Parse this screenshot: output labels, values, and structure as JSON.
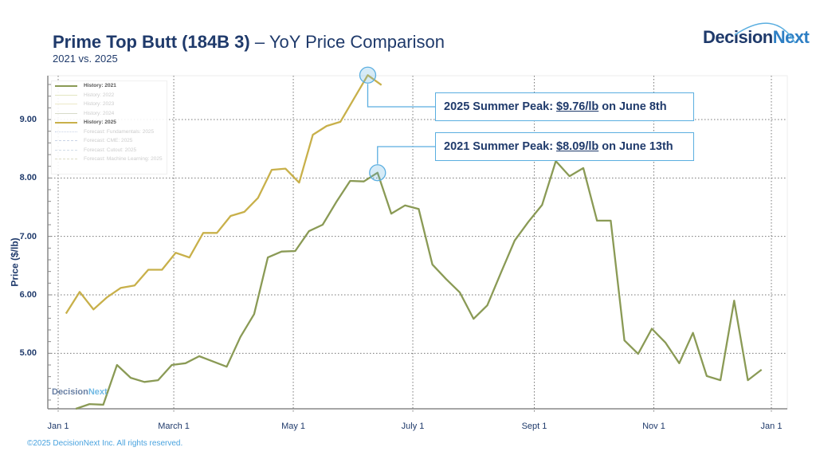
{
  "header": {
    "title_bold": "Prime Top Butt (184B 3)",
    "title_rest": " – YoY Price Comparison",
    "subtitle": "2021 vs. 2025",
    "logo_text_a": "Decision",
    "logo_text_b": "Next"
  },
  "footer": {
    "copyright": "©2025 DecisionNext Inc. All rights reserved."
  },
  "watermark": {
    "a": "Decision",
    "b": "Next"
  },
  "legend": {
    "items": [
      {
        "label": "History: 2021",
        "active": true,
        "color": "#8a9a55",
        "style": "solid"
      },
      {
        "label": "History: 2022",
        "active": false,
        "color": "#e3e6c2",
        "style": "solid"
      },
      {
        "label": "History: 2023",
        "active": false,
        "color": "#ece8c8",
        "style": "solid"
      },
      {
        "label": "History: 2024",
        "active": false,
        "color": "#d7dbc9",
        "style": "solid"
      },
      {
        "label": "History: 2025",
        "active": true,
        "color": "#c8b04a",
        "style": "solid"
      },
      {
        "label": "Forecast: Fundamentals: 2025",
        "active": false,
        "color": "#c9d3e6",
        "style": "dotted"
      },
      {
        "label": "Forecast: CME: 2025",
        "active": false,
        "color": "#c9d3e6",
        "style": "dashed"
      },
      {
        "label": "Forecast: Cutout: 2025",
        "active": false,
        "color": "#d3dde8",
        "style": "dashed"
      },
      {
        "label": "Forecast: Machine Learning: 2025",
        "active": false,
        "color": "#dcdcc6",
        "style": "dashed"
      }
    ]
  },
  "annotations": [
    {
      "prefix": "2025 Summer Peak: ",
      "value": "$9.76/lb",
      "suffix": " on June 8th",
      "series": "History: 2025",
      "date": "06-08",
      "price": 9.76
    },
    {
      "prefix": "2021 Summer Peak: ",
      "value": "$8.09/lb",
      "suffix": " on June 13th",
      "series": "History: 2021",
      "date": "06-13",
      "price": 8.09
    }
  ],
  "chart_data": {
    "type": "line",
    "title": "Prime Top Butt (184B 3) – YoY Price Comparison",
    "subtitle": "2021 vs. 2025",
    "ylabel": "Price ($/lb)",
    "xlabel": "",
    "x_ticks": [
      {
        "label": "Jan 1",
        "date": "01-01"
      },
      {
        "label": "March 1",
        "date": "03-01"
      },
      {
        "label": "May 1",
        "date": "05-01"
      },
      {
        "label": "July 1",
        "date": "07-01"
      },
      {
        "label": "Sept 1",
        "date": "09-01"
      },
      {
        "label": "Nov 1",
        "date": "11-01"
      },
      {
        "label": "Jan 1",
        "date": "12-31"
      }
    ],
    "y_ticks": [
      "5.00",
      "6.00",
      "7.00",
      "8.00",
      "9.00"
    ],
    "ylim": [
      4.05,
      9.75
    ],
    "grid": true,
    "legend_position": "top-left",
    "series": [
      {
        "name": "History: 2021",
        "color": "#8a9a55",
        "x": [
          "01-10",
          "01-17",
          "01-24",
          "01-31",
          "02-07",
          "02-14",
          "02-21",
          "02-28",
          "03-07",
          "03-14",
          "03-21",
          "03-28",
          "04-04",
          "04-11",
          "04-18",
          "04-25",
          "05-02",
          "05-09",
          "05-16",
          "05-23",
          "05-30",
          "06-06",
          "06-13",
          "06-20",
          "06-27",
          "07-04",
          "07-11",
          "07-18",
          "07-25",
          "08-01",
          "08-08",
          "08-15",
          "08-22",
          "08-29",
          "09-05",
          "09-12",
          "09-19",
          "09-26",
          "10-03",
          "10-10",
          "10-17",
          "10-24",
          "10-31",
          "11-07",
          "11-14",
          "11-21",
          "11-28",
          "12-05",
          "12-12",
          "12-19",
          "12-26"
        ],
        "y": [
          4.05,
          4.13,
          4.12,
          4.8,
          4.58,
          4.51,
          4.54,
          4.8,
          4.83,
          4.95,
          4.86,
          4.77,
          5.28,
          5.67,
          6.64,
          6.74,
          6.75,
          7.09,
          7.2,
          7.59,
          7.95,
          7.94,
          8.09,
          7.39,
          7.53,
          7.47,
          6.52,
          6.27,
          6.04,
          5.59,
          5.82,
          6.38,
          6.93,
          7.25,
          7.54,
          8.29,
          8.03,
          8.17,
          7.27,
          7.27,
          5.22,
          4.99,
          5.42,
          5.18,
          4.83,
          5.35,
          4.61,
          4.54,
          5.9,
          4.54,
          4.72
        ]
      },
      {
        "name": "History: 2025",
        "color": "#c8b04a",
        "x": [
          "01-05",
          "01-12",
          "01-19",
          "01-26",
          "02-02",
          "02-09",
          "02-16",
          "02-23",
          "03-02",
          "03-09",
          "03-16",
          "03-23",
          "03-30",
          "04-06",
          "04-13",
          "04-20",
          "04-27",
          "05-04",
          "05-11",
          "05-18",
          "05-25",
          "06-01",
          "06-08",
          "06-15"
        ],
        "y": [
          5.68,
          6.05,
          5.75,
          5.96,
          6.12,
          6.16,
          6.43,
          6.43,
          6.72,
          6.64,
          7.06,
          7.06,
          7.35,
          7.42,
          7.66,
          8.14,
          8.16,
          7.92,
          8.74,
          8.89,
          8.96,
          9.36,
          9.76,
          9.59
        ]
      }
    ]
  }
}
